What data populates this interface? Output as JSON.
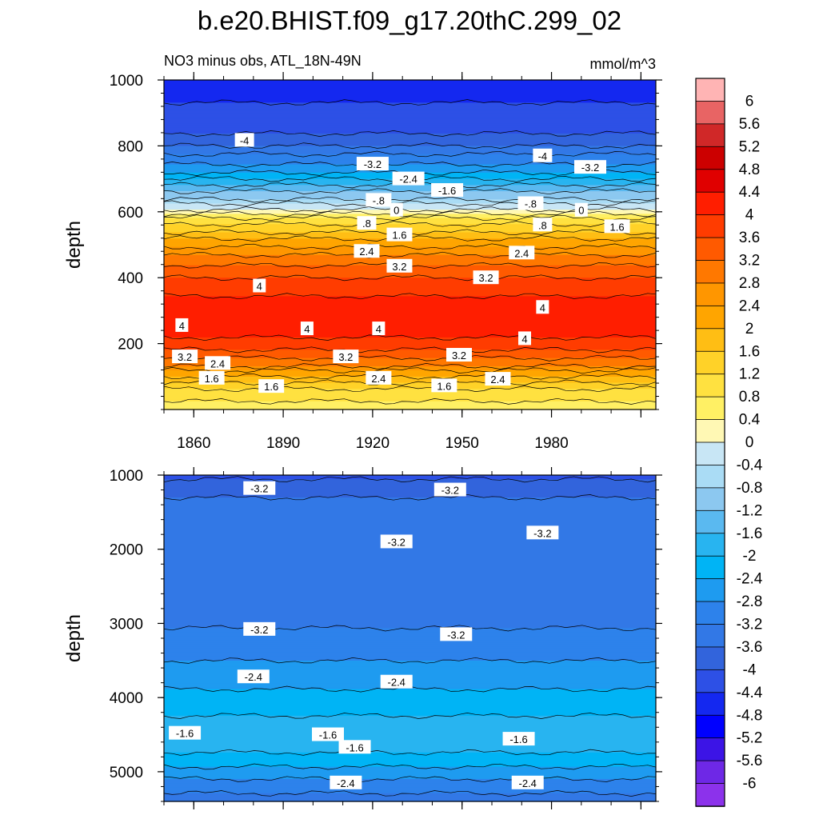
{
  "title": "b.e20.BHIST.f09_g17.20thC.299_02",
  "left_string": "NO3 minus obs, ATL_18N-49N",
  "right_string": "mmol/m^3",
  "chart_data": [
    {
      "type": "heatmap",
      "panel": "upper",
      "ylabel": "depth",
      "ylim": [
        1000,
        0
      ],
      "y_ticks": [
        "200",
        "400",
        "600",
        "800",
        "1000"
      ],
      "x_ticks": [
        "1860",
        "1890",
        "1920",
        "1950",
        "1980"
      ],
      "xlim": [
        1850,
        2015
      ],
      "profile": [
        {
          "depth": 0,
          "value": 0.5
        },
        {
          "depth": 60,
          "value": 1.2
        },
        {
          "depth": 100,
          "value": 2.0
        },
        {
          "depth": 140,
          "value": 3.0
        },
        {
          "depth": 180,
          "value": 3.6
        },
        {
          "depth": 230,
          "value": 4.1
        },
        {
          "depth": 280,
          "value": 4.2
        },
        {
          "depth": 330,
          "value": 4.1
        },
        {
          "depth": 380,
          "value": 3.8
        },
        {
          "depth": 420,
          "value": 3.4
        },
        {
          "depth": 460,
          "value": 2.9
        },
        {
          "depth": 500,
          "value": 2.3
        },
        {
          "depth": 540,
          "value": 1.6
        },
        {
          "depth": 570,
          "value": 1.0
        },
        {
          "depth": 600,
          "value": 0.3
        },
        {
          "depth": 615,
          "value": -0.2
        },
        {
          "depth": 640,
          "value": -0.8
        },
        {
          "depth": 680,
          "value": -1.6
        },
        {
          "depth": 720,
          "value": -2.4
        },
        {
          "depth": 760,
          "value": -3.0
        },
        {
          "depth": 800,
          "value": -3.6
        },
        {
          "depth": 840,
          "value": -4.0
        },
        {
          "depth": 900,
          "value": -4.3
        },
        {
          "depth": 1000,
          "value": -4.6
        }
      ],
      "contour_labels": [
        {
          "text": "1.6",
          "year": 1866,
          "depth": 95
        },
        {
          "text": "2.4",
          "year": 1868,
          "depth": 140
        },
        {
          "text": "1.6",
          "year": 1886,
          "depth": 70
        },
        {
          "text": "2.4",
          "year": 1922,
          "depth": 95
        },
        {
          "text": "1.6",
          "year": 1944,
          "depth": 72
        },
        {
          "text": "2.4",
          "year": 1962,
          "depth": 92
        },
        {
          "text": "3.2",
          "year": 1857,
          "depth": 160
        },
        {
          "text": "3.2",
          "year": 1911,
          "depth": 160
        },
        {
          "text": "3.2",
          "year": 1949,
          "depth": 165
        },
        {
          "text": "4",
          "year": 1856,
          "depth": 255
        },
        {
          "text": "4",
          "year": 1898,
          "depth": 245
        },
        {
          "text": "4",
          "year": 1922,
          "depth": 245
        },
        {
          "text": "4",
          "year": 1971,
          "depth": 215
        },
        {
          "text": "4",
          "year": 1977,
          "depth": 310
        },
        {
          "text": "4",
          "year": 1882,
          "depth": 375
        },
        {
          "text": "3.2",
          "year": 1958,
          "depth": 400
        },
        {
          "text": "3.2",
          "year": 1929,
          "depth": 435
        },
        {
          "text": "2.4",
          "year": 1918,
          "depth": 480
        },
        {
          "text": "2.4",
          "year": 1970,
          "depth": 475
        },
        {
          "text": "1.6",
          "year": 1929,
          "depth": 530
        },
        {
          "text": "1.6",
          "year": 2002,
          "depth": 555
        },
        {
          "text": ".8",
          "year": 1918,
          "depth": 565
        },
        {
          "text": ".8",
          "year": 1977,
          "depth": 560
        },
        {
          "text": "0",
          "year": 1928,
          "depth": 605
        },
        {
          "text": "0",
          "year": 1990,
          "depth": 605
        },
        {
          "text": "-.8",
          "year": 1922,
          "depth": 635
        },
        {
          "text": "-.8",
          "year": 1973,
          "depth": 625
        },
        {
          "text": "-1.6",
          "year": 1945,
          "depth": 665
        },
        {
          "text": "-2.4",
          "year": 1932,
          "depth": 700
        },
        {
          "text": "-3.2",
          "year": 1920,
          "depth": 745
        },
        {
          "text": "-3.2",
          "year": 1993,
          "depth": 735
        },
        {
          "text": "-4",
          "year": 1877,
          "depth": 817
        },
        {
          "text": "-4",
          "year": 1977,
          "depth": 770
        }
      ]
    },
    {
      "type": "heatmap",
      "panel": "lower",
      "ylabel": "depth",
      "ylim": [
        1000,
        5400
      ],
      "y_ticks": [
        "1000",
        "2000",
        "3000",
        "4000",
        "5000"
      ],
      "xlim": [
        1850,
        2015
      ],
      "profile": [
        {
          "depth": 1000,
          "value": -4.1
        },
        {
          "depth": 1300,
          "value": -3.6
        },
        {
          "depth": 1700,
          "value": -3.3
        },
        {
          "depth": 2100,
          "value": -3.6
        },
        {
          "depth": 2500,
          "value": -3.6
        },
        {
          "depth": 2900,
          "value": -3.3
        },
        {
          "depth": 3200,
          "value": -3.1
        },
        {
          "depth": 3500,
          "value": -2.8
        },
        {
          "depth": 3800,
          "value": -2.5
        },
        {
          "depth": 4100,
          "value": -2.2
        },
        {
          "depth": 4400,
          "value": -1.8
        },
        {
          "depth": 4600,
          "value": -1.7
        },
        {
          "depth": 4800,
          "value": -2.1
        },
        {
          "depth": 5000,
          "value": -2.6
        },
        {
          "depth": 5400,
          "value": -3.4
        }
      ],
      "contour_labels": [
        {
          "text": "-3.2",
          "year": 1882,
          "depth": 1180
        },
        {
          "text": "-3.2",
          "year": 1946,
          "depth": 1200
        },
        {
          "text": "-3.2",
          "year": 1928,
          "depth": 1900
        },
        {
          "text": "-3.2",
          "year": 1977,
          "depth": 1780
        },
        {
          "text": "-3.2",
          "year": 1882,
          "depth": 3080
        },
        {
          "text": "-3.2",
          "year": 1948,
          "depth": 3150
        },
        {
          "text": "-2.4",
          "year": 1880,
          "depth": 3720
        },
        {
          "text": "-2.4",
          "year": 1928,
          "depth": 3790
        },
        {
          "text": "-1.6",
          "year": 1857,
          "depth": 4480
        },
        {
          "text": "-1.6",
          "year": 1905,
          "depth": 4500
        },
        {
          "text": "-1.6",
          "year": 1914,
          "depth": 4670
        },
        {
          "text": "-1.6",
          "year": 1969,
          "depth": 4560
        },
        {
          "text": "-2.4",
          "year": 1911,
          "depth": 5150
        },
        {
          "text": "-2.4",
          "year": 1972,
          "depth": 5150
        }
      ]
    }
  ],
  "colorbar": {
    "labels": [
      "6",
      "5.6",
      "5.2",
      "4.8",
      "4.4",
      "4",
      "3.6",
      "3.2",
      "2.8",
      "2.4",
      "2",
      "1.6",
      "1.2",
      "0.8",
      "0.4",
      "0",
      "-0.4",
      "-0.8",
      "-1.2",
      "-1.6",
      "-2",
      "-2.4",
      "-2.8",
      "-3.2",
      "-3.6",
      "-4",
      "-4.4",
      "-4.8",
      "-5.2",
      "-5.6",
      "-6"
    ],
    "colors": [
      "#FFB4B4",
      "#E86464",
      "#D02828",
      "#CC0000",
      "#E00000",
      "#FF1E00",
      "#FF3C00",
      "#FF5A00",
      "#FF7800",
      "#FF9600",
      "#FFA500",
      "#FFBE14",
      "#FFD228",
      "#FFE140",
      "#FFF064",
      "#FFF8B4",
      "#C8E6F5",
      "#AADCF5",
      "#8CC8F0",
      "#5AB9F0",
      "#28B4F0",
      "#00B4F5",
      "#1E9BF0",
      "#2D82EB",
      "#3278E6",
      "#3264DC",
      "#2D50E6",
      "#1428F0",
      "#0000FF",
      "#3C14E6",
      "#6E28E6",
      "#8C32EB"
    ]
  }
}
